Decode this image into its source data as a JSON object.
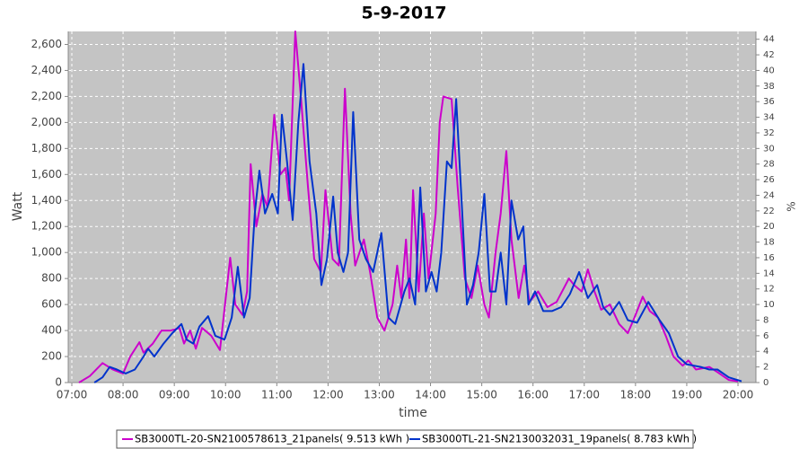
{
  "chart_data": {
    "type": "line",
    "title": "5-9-2017",
    "x_label": "time",
    "y_label": "Watt",
    "y2_label": "%",
    "xlim": [
      6.93,
      20.35
    ],
    "ylim": [
      0,
      2700
    ],
    "y2lim": [
      0,
      45
    ],
    "grid": true,
    "legend": "bottom",
    "xticks": [
      {
        "value": 7,
        "label": "07:00"
      },
      {
        "value": 8,
        "label": "08:00"
      },
      {
        "value": 9,
        "label": "09:00"
      },
      {
        "value": 10,
        "label": "10:00"
      },
      {
        "value": 11,
        "label": "11:00"
      },
      {
        "value": 12,
        "label": "12:00"
      },
      {
        "value": 13,
        "label": "13:00"
      },
      {
        "value": 14,
        "label": "14:00"
      },
      {
        "value": 15,
        "label": "15:00"
      },
      {
        "value": 16,
        "label": "16:00"
      },
      {
        "value": 17,
        "label": "17:00"
      },
      {
        "value": 18,
        "label": "18:00"
      },
      {
        "value": 19,
        "label": "19:00"
      },
      {
        "value": 20,
        "label": "20:00"
      }
    ],
    "yticks": [
      0,
      200,
      400,
      600,
      800,
      {
        "value": 1000,
        "label": "1,000"
      },
      {
        "value": 1200,
        "label": "1,200"
      },
      {
        "value": 1400,
        "label": "1,400"
      },
      {
        "value": 1600,
        "label": "1,600"
      },
      {
        "value": 1800,
        "label": "1,800"
      },
      {
        "value": 2000,
        "label": "2,000"
      },
      {
        "value": 2200,
        "label": "2,200"
      },
      {
        "value": 2400,
        "label": "2,400"
      },
      {
        "value": 2600,
        "label": "2,600"
      }
    ],
    "y2ticks": [
      0,
      2,
      4,
      6,
      8,
      10,
      12,
      14,
      16,
      18,
      20,
      22,
      24,
      26,
      28,
      30,
      32,
      34,
      36,
      38,
      40,
      42,
      44
    ],
    "series": [
      {
        "name": "SB3000TL-20-SN2100578613_21panels( 9.513 kWh )",
        "color": "#cc00cc",
        "x": [
          7.14,
          7.35,
          7.6,
          7.8,
          8.0,
          8.14,
          8.32,
          8.4,
          8.58,
          8.75,
          8.93,
          9.1,
          9.19,
          9.31,
          9.42,
          9.54,
          9.72,
          9.89,
          10.09,
          10.19,
          10.33,
          10.42,
          10.49,
          10.6,
          10.72,
          10.82,
          10.95,
          11.07,
          11.17,
          11.24,
          11.36,
          11.47,
          11.61,
          11.73,
          11.86,
          11.95,
          12.09,
          12.21,
          12.33,
          12.44,
          12.53,
          12.7,
          12.82,
          12.96,
          13.1,
          13.26,
          13.35,
          13.43,
          13.52,
          13.59,
          13.66,
          13.77,
          13.87,
          13.96,
          14.1,
          14.18,
          14.25,
          14.41,
          14.53,
          14.67,
          14.8,
          14.92,
          15.05,
          15.14,
          15.27,
          15.37,
          15.48,
          15.58,
          15.72,
          15.83,
          15.93,
          16.1,
          16.28,
          16.46,
          16.7,
          16.8,
          16.95,
          17.07,
          17.2,
          17.33,
          17.5,
          17.68,
          17.85,
          17.98,
          18.14,
          18.28,
          18.44,
          18.6,
          18.74,
          18.92,
          19.03,
          19.18,
          19.44,
          19.6,
          19.82,
          20.0
        ],
        "values": [
          0,
          50,
          150,
          100,
          70,
          200,
          310,
          230,
          300,
          400,
          400,
          420,
          300,
          400,
          260,
          420,
          360,
          250,
          960,
          600,
          520,
          700,
          1680,
          1200,
          1450,
          1350,
          2060,
          1600,
          1650,
          1400,
          2700,
          2200,
          1500,
          950,
          850,
          1480,
          950,
          900,
          2260,
          1300,
          900,
          1100,
          850,
          500,
          400,
          600,
          900,
          650,
          1100,
          650,
          1480,
          700,
          1300,
          800,
          1300,
          2000,
          2200,
          2180,
          1500,
          800,
          650,
          900,
          600,
          500,
          1000,
          1300,
          1780,
          1100,
          650,
          900,
          620,
          700,
          580,
          620,
          800,
          750,
          700,
          870,
          700,
          560,
          600,
          450,
          380,
          500,
          660,
          550,
          500,
          350,
          200,
          130,
          170,
          100,
          120,
          80,
          20,
          10
        ]
      },
      {
        "name": "SB3000TL-21-SN2130032031_19panels( 8.783 kWh )",
        "color": "#0033cc",
        "x": [
          7.44,
          7.6,
          7.74,
          7.88,
          8.05,
          8.23,
          8.4,
          8.49,
          8.61,
          8.79,
          8.96,
          9.14,
          9.24,
          9.37,
          9.49,
          9.66,
          9.8,
          9.98,
          10.12,
          10.24,
          10.36,
          10.47,
          10.57,
          10.66,
          10.77,
          10.91,
          11.02,
          11.1,
          11.2,
          11.31,
          11.42,
          11.52,
          11.64,
          11.77,
          11.87,
          11.98,
          12.1,
          12.19,
          12.3,
          12.39,
          12.49,
          12.61,
          12.74,
          12.88,
          13.04,
          13.18,
          13.31,
          13.49,
          13.59,
          13.7,
          13.8,
          13.91,
          14.02,
          14.12,
          14.21,
          14.32,
          14.41,
          14.5,
          14.62,
          14.71,
          14.83,
          14.94,
          15.05,
          15.16,
          15.27,
          15.37,
          15.48,
          15.58,
          15.71,
          15.81,
          15.91,
          16.04,
          16.2,
          16.37,
          16.55,
          16.72,
          16.9,
          17.07,
          17.25,
          17.37,
          17.5,
          17.68,
          17.85,
          18.03,
          18.25,
          18.47,
          18.65,
          18.83,
          19.0,
          19.27,
          19.44,
          19.6,
          19.82,
          20.07
        ],
        "values": [
          0,
          40,
          120,
          100,
          70,
          100,
          200,
          260,
          200,
          300,
          380,
          450,
          330,
          300,
          430,
          510,
          360,
          330,
          500,
          890,
          500,
          650,
          1300,
          1630,
          1300,
          1450,
          1300,
          2060,
          1700,
          1250,
          2000,
          2450,
          1700,
          1300,
          750,
          950,
          1430,
          1000,
          850,
          1000,
          2080,
          1100,
          950,
          850,
          1150,
          500,
          450,
          700,
          800,
          600,
          1500,
          700,
          850,
          700,
          1000,
          1700,
          1650,
          2180,
          1300,
          600,
          750,
          1000,
          1450,
          700,
          700,
          1000,
          600,
          1400,
          1100,
          1200,
          600,
          700,
          550,
          550,
          580,
          680,
          850,
          650,
          750,
          580,
          520,
          620,
          480,
          460,
          620,
          480,
          380,
          200,
          140,
          120,
          100,
          100,
          40,
          10
        ]
      }
    ]
  }
}
